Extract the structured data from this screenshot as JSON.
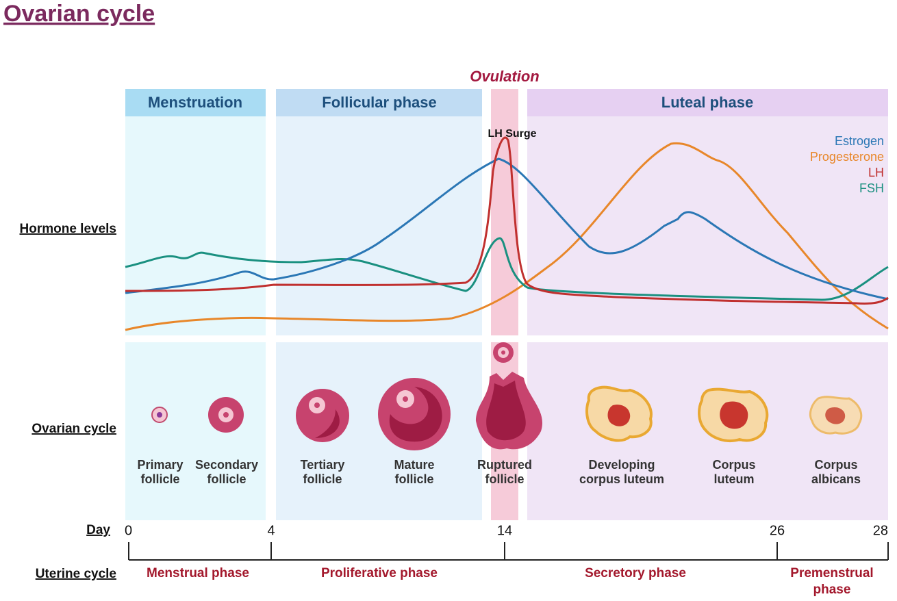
{
  "title": "Ovarian cycle",
  "ovulation": "Ovulation",
  "phases": [
    "Menstruation",
    "Follicular phase",
    "Luteal phase"
  ],
  "lh_surge": "LH Surge",
  "legend": [
    {
      "name": "Estrogen",
      "color": "#2b77b5"
    },
    {
      "name": "Progesterone",
      "color": "#e8872a"
    },
    {
      "name": "LH",
      "color": "#c0302f"
    },
    {
      "name": "FSH",
      "color": "#1a9080"
    }
  ],
  "row_labels": [
    "Hormone levels",
    "Ovarian cycle",
    "Day",
    "Uterine cycle"
  ],
  "stages": [
    [
      "Primary",
      "follicle"
    ],
    [
      "Secondary",
      "follicle"
    ],
    [
      "Tertiary",
      "follicle"
    ],
    [
      "Mature",
      "follicle"
    ],
    [
      "Ruptured",
      "follicle"
    ],
    [
      "Developing",
      "corpus luteum"
    ],
    [
      "Corpus",
      "luteum"
    ],
    [
      "Corpus",
      "albicans"
    ]
  ],
  "days": [
    0,
    4,
    14,
    26,
    28
  ],
  "uterine_phases": [
    [
      "Menstrual phase"
    ],
    [
      "Proliferative phase"
    ],
    [
      "Secretory phase"
    ],
    [
      "Premenstrual",
      "phase"
    ]
  ]
}
